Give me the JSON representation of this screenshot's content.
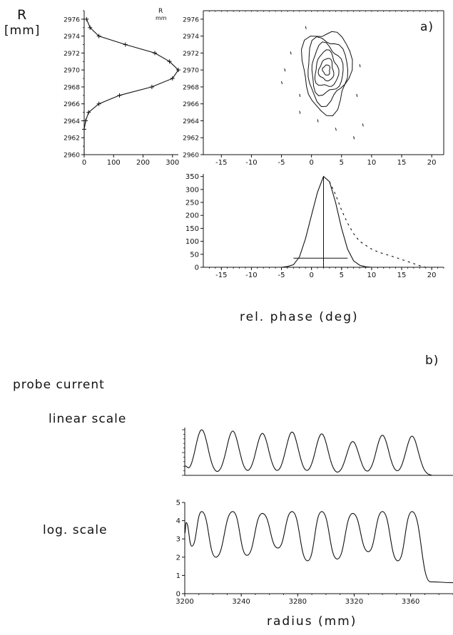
{
  "labels": {
    "r_axis": "R",
    "r_unit": "[mm]",
    "corner_r": "R",
    "corner_mm": "mm",
    "panel_a": "a)",
    "panel_b": "b)",
    "phase_xlabel": "rel. phase (deg)",
    "probe_current": "probe current",
    "linear_scale": "linear scale",
    "log_scale": "log. scale",
    "radius_xlabel": "radius (mm)"
  },
  "chart_data": [
    {
      "type": "line",
      "id": "radial-profile",
      "xlim": [
        0,
        320
      ],
      "ylim": [
        2960,
        2977
      ],
      "xticks": [
        0,
        100,
        200,
        300
      ],
      "yticks": [
        2960,
        2962,
        2964,
        2966,
        2968,
        2970,
        2972,
        2974,
        2976
      ],
      "series": [
        {
          "points": [
            [
              8,
              2976
            ],
            [
              20,
              2975
            ],
            [
              50,
              2974
            ],
            [
              140,
              2973
            ],
            [
              240,
              2972
            ],
            [
              290,
              2971
            ],
            [
              320,
              2970
            ],
            [
              300,
              2969
            ],
            [
              230,
              2968
            ],
            [
              120,
              2967
            ],
            [
              50,
              2966
            ],
            [
              15,
              2965
            ],
            [
              5,
              2964
            ],
            [
              0,
              2963
            ],
            [
              0,
              2960
            ]
          ]
        }
      ]
    },
    {
      "type": "contour",
      "id": "phase-radius-contour",
      "xlim": [
        -18,
        22
      ],
      "ylim": [
        2960,
        2977
      ],
      "xticks": [
        -15,
        -10,
        -5,
        0,
        5,
        10,
        15,
        20
      ],
      "yticks": [
        2960,
        2962,
        2964,
        2966,
        2968,
        2970,
        2972,
        2974,
        2976
      ],
      "center": [
        2.5,
        2970
      ],
      "levels": [
        {
          "rx": 4.0,
          "ry": 4.8
        },
        {
          "rx": 3.3,
          "ry": 3.8
        },
        {
          "rx": 2.6,
          "ry": 2.9
        },
        {
          "rx": 1.9,
          "ry": 2.1
        },
        {
          "rx": 1.2,
          "ry": 1.3
        },
        {
          "rx": 0.6,
          "ry": 0.6
        }
      ],
      "scatter": [
        [
          -3.5,
          2972
        ],
        [
          -4.5,
          2970
        ],
        [
          -5,
          2968.5
        ],
        [
          -2,
          2967
        ],
        [
          8,
          2970.5
        ],
        [
          7.5,
          2967
        ],
        [
          8.5,
          2963.5
        ],
        [
          7,
          2962
        ],
        [
          -1,
          2975
        ],
        [
          4,
          2963
        ],
        [
          -2,
          2965
        ],
        [
          1,
          2964
        ]
      ]
    },
    {
      "type": "line",
      "id": "phase-projection",
      "xlim": [
        -18,
        22
      ],
      "ylim": [
        0,
        360
      ],
      "xticks": [
        -15,
        -10,
        -5,
        0,
        5,
        10,
        15,
        20
      ],
      "yticks": [
        0,
        50,
        100,
        150,
        200,
        250,
        300,
        350
      ],
      "series": [
        {
          "points": [
            [
              -5,
              0
            ],
            [
              -4,
              3
            ],
            [
              -3,
              10
            ],
            [
              -2,
              40
            ],
            [
              -1,
              110
            ],
            [
              0,
              200
            ],
            [
              1,
              290
            ],
            [
              2,
              350
            ],
            [
              3,
              330
            ],
            [
              4,
              250
            ],
            [
              5,
              150
            ],
            [
              6,
              70
            ],
            [
              7,
              25
            ],
            [
              8,
              8
            ],
            [
              9,
              2
            ],
            [
              10,
              0
            ]
          ]
        },
        {
          "points": [
            [
              3,
              330
            ],
            [
              4,
              280
            ],
            [
              5,
              220
            ],
            [
              6,
              170
            ],
            [
              7,
              130
            ],
            [
              8,
              100
            ],
            [
              9,
              85
            ],
            [
              10,
              70
            ],
            [
              11,
              60
            ],
            [
              12,
              52
            ],
            [
              13,
              45
            ],
            [
              14,
              38
            ],
            [
              15,
              30
            ],
            [
              16,
              22
            ],
            [
              17,
              14
            ],
            [
              18,
              6
            ],
            [
              19,
              0
            ]
          ]
        }
      ],
      "annotations": {
        "peak_marker_x": 2,
        "width_bar": {
          "y": 35,
          "x1": -3,
          "x2": 6
        }
      }
    },
    {
      "type": "line",
      "id": "probe-linear",
      "xlim": [
        3200,
        3390
      ],
      "ylim": [
        0,
        1
      ],
      "peaks": [
        {
          "x": 3212,
          "y": 1.0
        },
        {
          "x": 3234,
          "y": 0.97
        },
        {
          "x": 3255,
          "y": 0.92
        },
        {
          "x": 3276,
          "y": 0.95
        },
        {
          "x": 3297,
          "y": 0.91
        },
        {
          "x": 3319,
          "y": 0.74
        },
        {
          "x": 3340,
          "y": 0.88
        },
        {
          "x": 3361,
          "y": 0.86
        }
      ],
      "edge_start": {
        "x": 3200,
        "y": 0.18
      }
    },
    {
      "type": "line",
      "id": "probe-log",
      "xlim": [
        3200,
        3390
      ],
      "ylim": [
        0,
        5
      ],
      "xticks": [
        3200,
        3240,
        3280,
        3320,
        3360
      ],
      "yticks": [
        0,
        1,
        2,
        3,
        4,
        5
      ],
      "series": [
        {
          "points": [
            [
              3200,
              3.3
            ],
            [
              3201,
              3.9
            ],
            [
              3205,
              2.6
            ],
            [
              3212,
              4.5
            ],
            [
              3222,
              2.0
            ],
            [
              3234,
              4.5
            ],
            [
              3244,
              2.1
            ],
            [
              3255,
              4.4
            ],
            [
              3266,
              2.5
            ],
            [
              3276,
              4.5
            ],
            [
              3287,
              1.8
            ],
            [
              3297,
              4.5
            ],
            [
              3308,
              1.9
            ],
            [
              3319,
              4.4
            ],
            [
              3330,
              2.3
            ],
            [
              3340,
              4.5
            ],
            [
              3351,
              1.8
            ],
            [
              3361,
              4.5
            ],
            [
              3374,
              0.65
            ],
            [
              3390,
              0.6
            ]
          ]
        }
      ]
    }
  ]
}
